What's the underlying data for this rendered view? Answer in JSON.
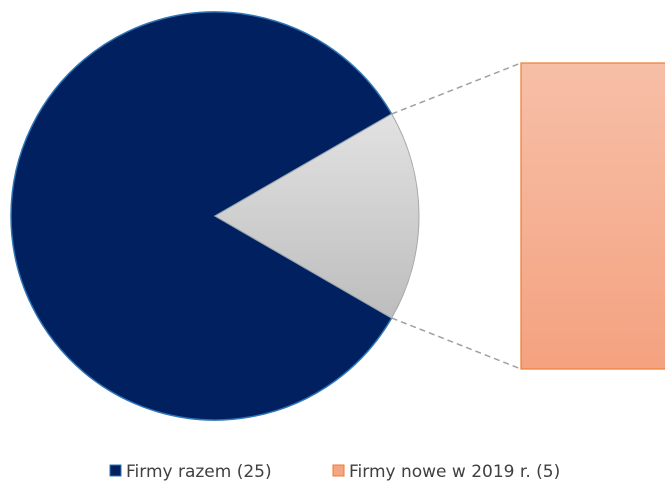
{
  "chart_data": {
    "type": "bar-of-pie",
    "categories": [
      "Firmy razem (25)",
      "Firmy nowe w 2019 r. (5)"
    ],
    "values": [
      25,
      5
    ],
    "colors": [
      "#002060",
      "#f4a582"
    ],
    "legend": "bottom"
  }
}
